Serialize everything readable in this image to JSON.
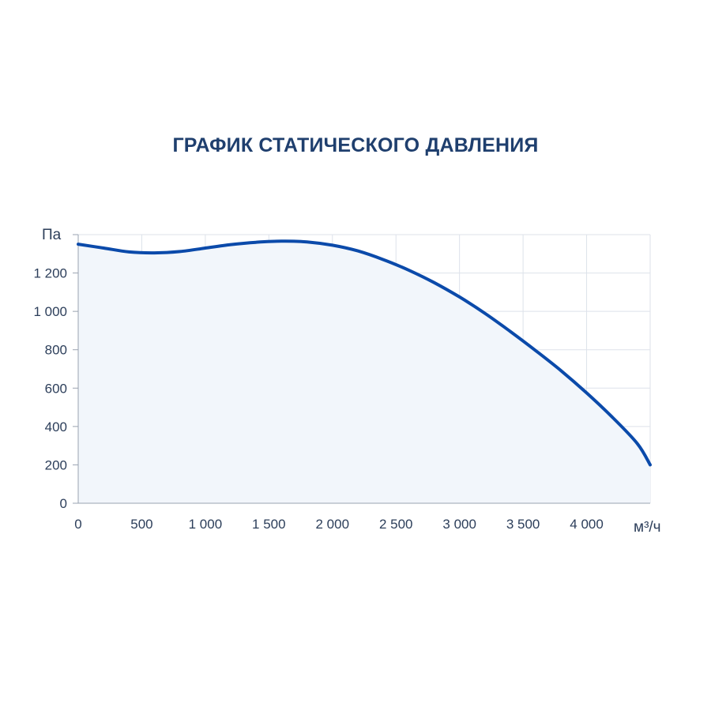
{
  "chart_data": {
    "type": "line",
    "title": "ГРАФИК СТАТИЧЕСКОГО ДАВЛЕНИЯ",
    "ylabel": "Па",
    "xlabel": "м³/ч",
    "xlim": [
      0,
      4500
    ],
    "ylim": [
      0,
      1400
    ],
    "xticks": [
      {
        "value": 0,
        "label": "0"
      },
      {
        "value": 500,
        "label": "500"
      },
      {
        "value": 1000,
        "label": "1 000"
      },
      {
        "value": 1500,
        "label": "1 500"
      },
      {
        "value": 2000,
        "label": "2 000"
      },
      {
        "value": 2500,
        "label": "2 500"
      },
      {
        "value": 3000,
        "label": "3 000"
      },
      {
        "value": 3500,
        "label": "3 500"
      },
      {
        "value": 4000,
        "label": "4 000"
      }
    ],
    "yticks": [
      {
        "value": 0,
        "label": "0"
      },
      {
        "value": 200,
        "label": "200"
      },
      {
        "value": 400,
        "label": "400"
      },
      {
        "value": 600,
        "label": "600"
      },
      {
        "value": 800,
        "label": "800"
      },
      {
        "value": 1000,
        "label": "1 000"
      },
      {
        "value": 1200,
        "label": "1 200"
      }
    ],
    "grid": true,
    "line_color": "#0b4aaa",
    "fill_color": "#f2f6fb",
    "grid_color": "#dde2ea",
    "series": [
      {
        "x": [
          0,
          200,
          400,
          600,
          800,
          1000,
          1200,
          1400,
          1600,
          1800,
          2000,
          2200,
          2400,
          2600,
          2800,
          3000,
          3200,
          3400,
          3600,
          3800,
          4000,
          4200,
          4400,
          4500
        ],
        "values": [
          1350,
          1330,
          1310,
          1305,
          1312,
          1330,
          1348,
          1360,
          1366,
          1362,
          1345,
          1315,
          1270,
          1215,
          1150,
          1075,
          990,
          895,
          795,
          690,
          575,
          450,
          310,
          200
        ]
      }
    ]
  }
}
